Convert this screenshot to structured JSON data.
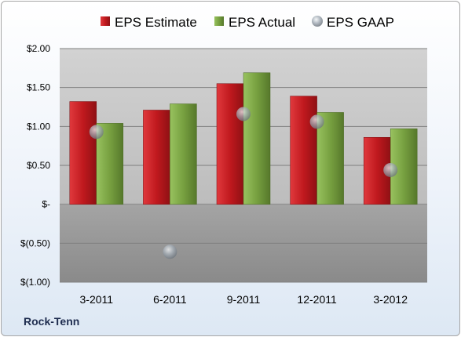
{
  "company_name": "Rock-Tenn",
  "colors": {
    "estimate": "#c0191e",
    "actual": "#77a040",
    "gaap": "#9aa3ad"
  },
  "chart_data": {
    "type": "bar",
    "categories": [
      "3-2011",
      "6-2011",
      "9-2011",
      "12-2011",
      "3-2012"
    ],
    "series": [
      {
        "name": "EPS Estimate",
        "kind": "bar",
        "values": [
          1.32,
          1.21,
          1.55,
          1.39,
          0.86
        ]
      },
      {
        "name": "EPS Actual",
        "kind": "bar",
        "values": [
          1.04,
          1.29,
          1.69,
          1.18,
          0.97
        ]
      },
      {
        "name": "EPS GAAP",
        "kind": "scatter",
        "values": [
          0.93,
          -0.61,
          1.16,
          1.06,
          0.44
        ]
      }
    ],
    "y_ticks": [
      {
        "value": 2.0,
        "label": "$2.00"
      },
      {
        "value": 1.5,
        "label": "$1.50"
      },
      {
        "value": 1.0,
        "label": "$1.00"
      },
      {
        "value": 0.5,
        "label": "$0.50"
      },
      {
        "value": 0.0,
        "label": "$-"
      },
      {
        "value": -0.5,
        "label": "$(0.50)"
      },
      {
        "value": -1.0,
        "label": "$(1.00)"
      }
    ],
    "ylim": [
      -1.0,
      2.0
    ],
    "grid": true,
    "legend_position": "top"
  }
}
